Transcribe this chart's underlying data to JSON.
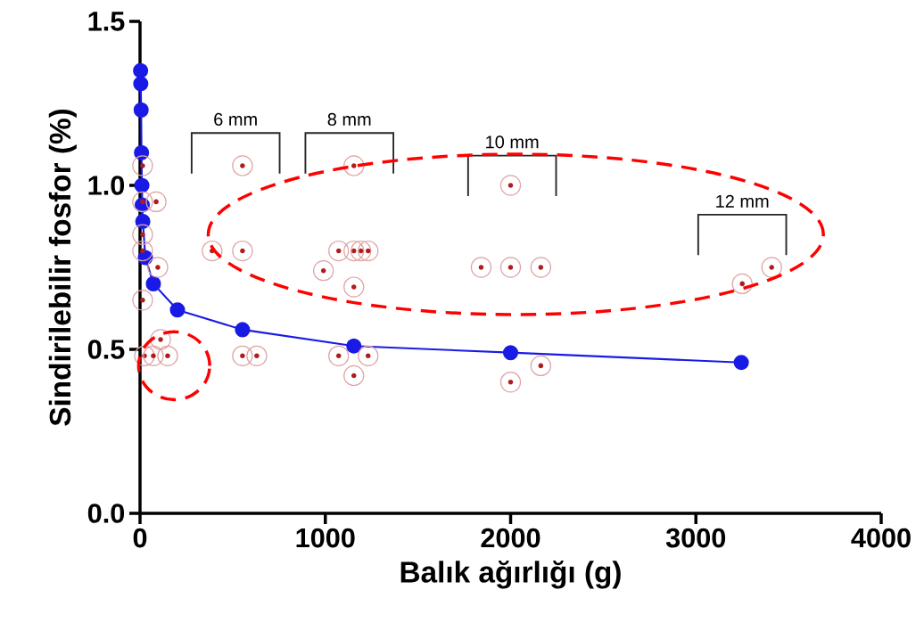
{
  "chart_data": {
    "type": "scatter",
    "xlabel": "Balık ağırlığı (g)",
    "ylabel": "Sindirilebilir fosfor (%)",
    "xlim": [
      0,
      4000
    ],
    "ylim": [
      0,
      1.5
    ],
    "xticks": [
      0,
      1000,
      2000,
      3000,
      4000
    ],
    "yticks": [
      {
        "value": 0,
        "label": "0.0"
      },
      0.5,
      {
        "value": 1,
        "label": "1.0"
      },
      1.5
    ],
    "series": [
      {
        "type": "line",
        "color": "#1a1ae6",
        "marker": "circle",
        "line_style": "solid",
        "x": [
          3,
          4,
          6,
          8,
          10,
          12,
          15,
          29,
          72,
          202,
          553,
          1154,
          2000,
          3245
        ],
        "values": [
          1.35,
          1.31,
          1.23,
          1.1,
          1.0,
          0.94,
          0.89,
          0.78,
          0.7,
          0.62,
          0.56,
          0.51,
          0.49,
          0.46
        ]
      },
      {
        "color": "#b01c1c",
        "marker": "circle",
        "x": [
          14,
          14,
          87,
          14,
          14,
          96,
          14,
          111,
          24,
          72,
          149,
          553,
          389,
          553,
          553,
          630,
          1154,
          1072,
          1154,
          1192,
          1231,
          990,
          1154,
          1072,
          1231,
          1154,
          2000,
          1841,
          2000,
          2163,
          2163,
          2000,
          3250,
          3409
        ],
        "values": [
          1.06,
          0.95,
          0.95,
          0.85,
          0.8,
          0.75,
          0.65,
          0.53,
          0.48,
          0.48,
          0.48,
          1.06,
          0.8,
          0.8,
          0.48,
          0.48,
          1.06,
          0.8,
          0.8,
          0.8,
          0.8,
          0.74,
          0.69,
          0.48,
          0.48,
          0.42,
          1.0,
          0.75,
          0.75,
          0.75,
          0.45,
          0.4,
          0.7,
          0.75
        ]
      }
    ],
    "annotations": [
      "6 mm",
      "8 mm",
      "10 mm",
      "12 mm"
    ]
  }
}
